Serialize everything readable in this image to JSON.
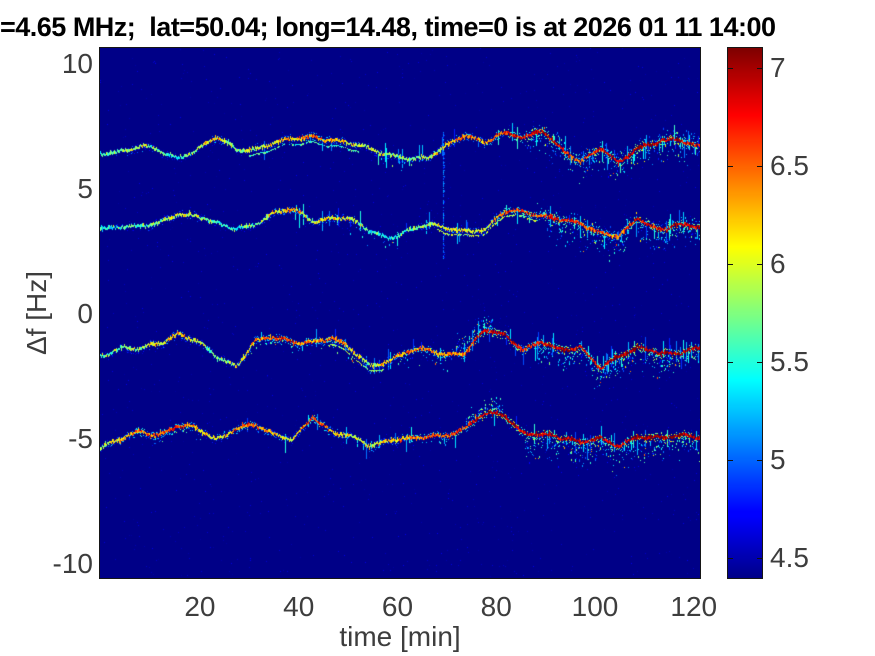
{
  "figure": {
    "background": "#ffffff"
  },
  "colors": {
    "plot_background": "#000085",
    "tick_label": "#3d3d3d",
    "title": "#000000",
    "axis_edge": "#161616"
  },
  "chart_data": {
    "type": "heatmap",
    "subtype": "doppler-spectrogram",
    "title": "=4.65 MHz;  lat=50.04; long=14.48, time=0 is at 2026 01 11 14:00",
    "xlabel": "time [min]",
    "ylabel": "Δf [Hz]",
    "xlim": [
      -0.24,
      121.26
    ],
    "ylim": [
      -10.56,
      10.64
    ],
    "xticks": [
      20,
      40,
      60,
      80,
      100,
      120
    ],
    "yticks": [
      10,
      5,
      0,
      -5,
      -10
    ],
    "grid": false,
    "legend": false,
    "colormap": "jet",
    "colorbar": {
      "position": "right",
      "vmin": 4.4,
      "vmax": 7.1,
      "ticks": [
        7,
        6.5,
        6,
        5.5,
        5,
        4.5
      ]
    },
    "background_value": 4.4,
    "t": [
      0,
      3.9,
      7.8,
      11.6,
      15.5,
      19.4,
      23.3,
      27.2,
      31.0,
      34.9,
      38.8,
      42.7,
      46.6,
      50.4,
      54.3,
      58.2,
      62.1,
      65.9,
      69.8,
      73.7,
      77.6,
      81.5,
      85.3,
      89.2,
      93.1,
      97.0,
      100.9,
      104.7,
      108.6,
      112.5,
      116.4,
      120.2
    ],
    "series": [
      {
        "name": "doppler-trace-1",
        "f": [
          6.43,
          6.55,
          6.71,
          6.48,
          6.25,
          6.63,
          7.05,
          6.55,
          6.63,
          6.86,
          6.94,
          7.09,
          7.02,
          6.79,
          6.55,
          6.4,
          6.25,
          6.17,
          6.71,
          7.25,
          6.86,
          7.17,
          7.09,
          7.4,
          6.55,
          6.01,
          6.71,
          6.09,
          6.55,
          6.86,
          7.09,
          6.71
        ],
        "intensity": [
          5.5,
          5.7,
          5.9,
          5.6,
          5.5,
          5.8,
          6.1,
          5.6,
          5.9,
          6.1,
          6.2,
          6.4,
          6.3,
          6.0,
          5.8,
          5.7,
          5.6,
          5.8,
          6.0,
          6.5,
          6.3,
          6.6,
          6.7,
          6.9,
          6.6,
          6.4,
          6.8,
          6.9,
          7.0,
          6.9,
          7.0,
          6.8
        ]
      },
      {
        "name": "doppler-trace-2",
        "f": [
          3.46,
          3.54,
          3.43,
          3.62,
          4.08,
          3.93,
          3.54,
          3.43,
          3.62,
          4.0,
          4.16,
          3.77,
          3.85,
          3.77,
          3.31,
          3.08,
          3.31,
          3.54,
          3.46,
          3.39,
          3.31,
          4.08,
          4.16,
          3.93,
          3.7,
          3.62,
          3.31,
          3.08,
          3.77,
          3.39,
          3.62,
          3.46
        ],
        "intensity": [
          5.4,
          5.5,
          5.6,
          5.7,
          6.0,
          5.8,
          5.5,
          5.4,
          5.7,
          6.0,
          6.2,
          5.8,
          6.0,
          5.9,
          5.5,
          5.3,
          5.6,
          5.8,
          5.9,
          6.0,
          5.9,
          6.4,
          6.6,
          6.5,
          6.7,
          6.6,
          6.5,
          6.3,
          6.9,
          6.6,
          6.9,
          6.8
        ]
      },
      {
        "name": "doppler-trace-3",
        "f": [
          -1.6,
          -1.37,
          -1.45,
          -1.14,
          -0.75,
          -1.14,
          -1.76,
          -2.06,
          -1.06,
          -0.98,
          -1.14,
          -1.06,
          -0.98,
          -1.45,
          -2.06,
          -1.83,
          -1.52,
          -1.45,
          -1.6,
          -1.52,
          -0.7,
          -0.83,
          -1.37,
          -1.14,
          -1.52,
          -1.29,
          -2.1,
          -1.76,
          -1.37,
          -1.45,
          -1.6,
          -1.45
        ],
        "intensity": [
          5.6,
          5.7,
          5.8,
          6.0,
          6.2,
          5.8,
          5.6,
          5.9,
          6.3,
          6.5,
          6.4,
          6.3,
          6.5,
          6.0,
          5.8,
          6.2,
          6.4,
          6.3,
          6.2,
          6.4,
          6.8,
          6.9,
          6.6,
          6.8,
          6.9,
          6.8,
          6.7,
          6.9,
          7.0,
          6.9,
          7.0,
          6.9
        ]
      },
      {
        "name": "doppler-trace-4",
        "f": [
          -5.28,
          -5.05,
          -4.74,
          -4.81,
          -4.43,
          -4.66,
          -5.05,
          -4.51,
          -4.43,
          -4.89,
          -4.97,
          -4.04,
          -4.81,
          -4.89,
          -5.2,
          -5.05,
          -5.05,
          -4.89,
          -4.81,
          -4.58,
          -4.04,
          -3.97,
          -4.74,
          -4.89,
          -4.97,
          -5.05,
          -4.97,
          -5.36,
          -4.89,
          -4.89,
          -4.89,
          -4.97
        ],
        "intensity": [
          5.8,
          6.2,
          6.4,
          6.3,
          6.6,
          6.2,
          5.9,
          6.4,
          6.5,
          6.1,
          6.0,
          6.7,
          6.2,
          6.0,
          5.9,
          6.1,
          6.3,
          6.4,
          6.5,
          6.6,
          6.9,
          7.0,
          6.7,
          6.8,
          6.9,
          6.8,
          6.9,
          6.7,
          7.0,
          6.9,
          7.0,
          6.9
        ]
      }
    ],
    "artifacts": {
      "vertical_streak": {
        "t": 69.3,
        "f_from": 2.2,
        "f_to": 7.3
      }
    }
  }
}
